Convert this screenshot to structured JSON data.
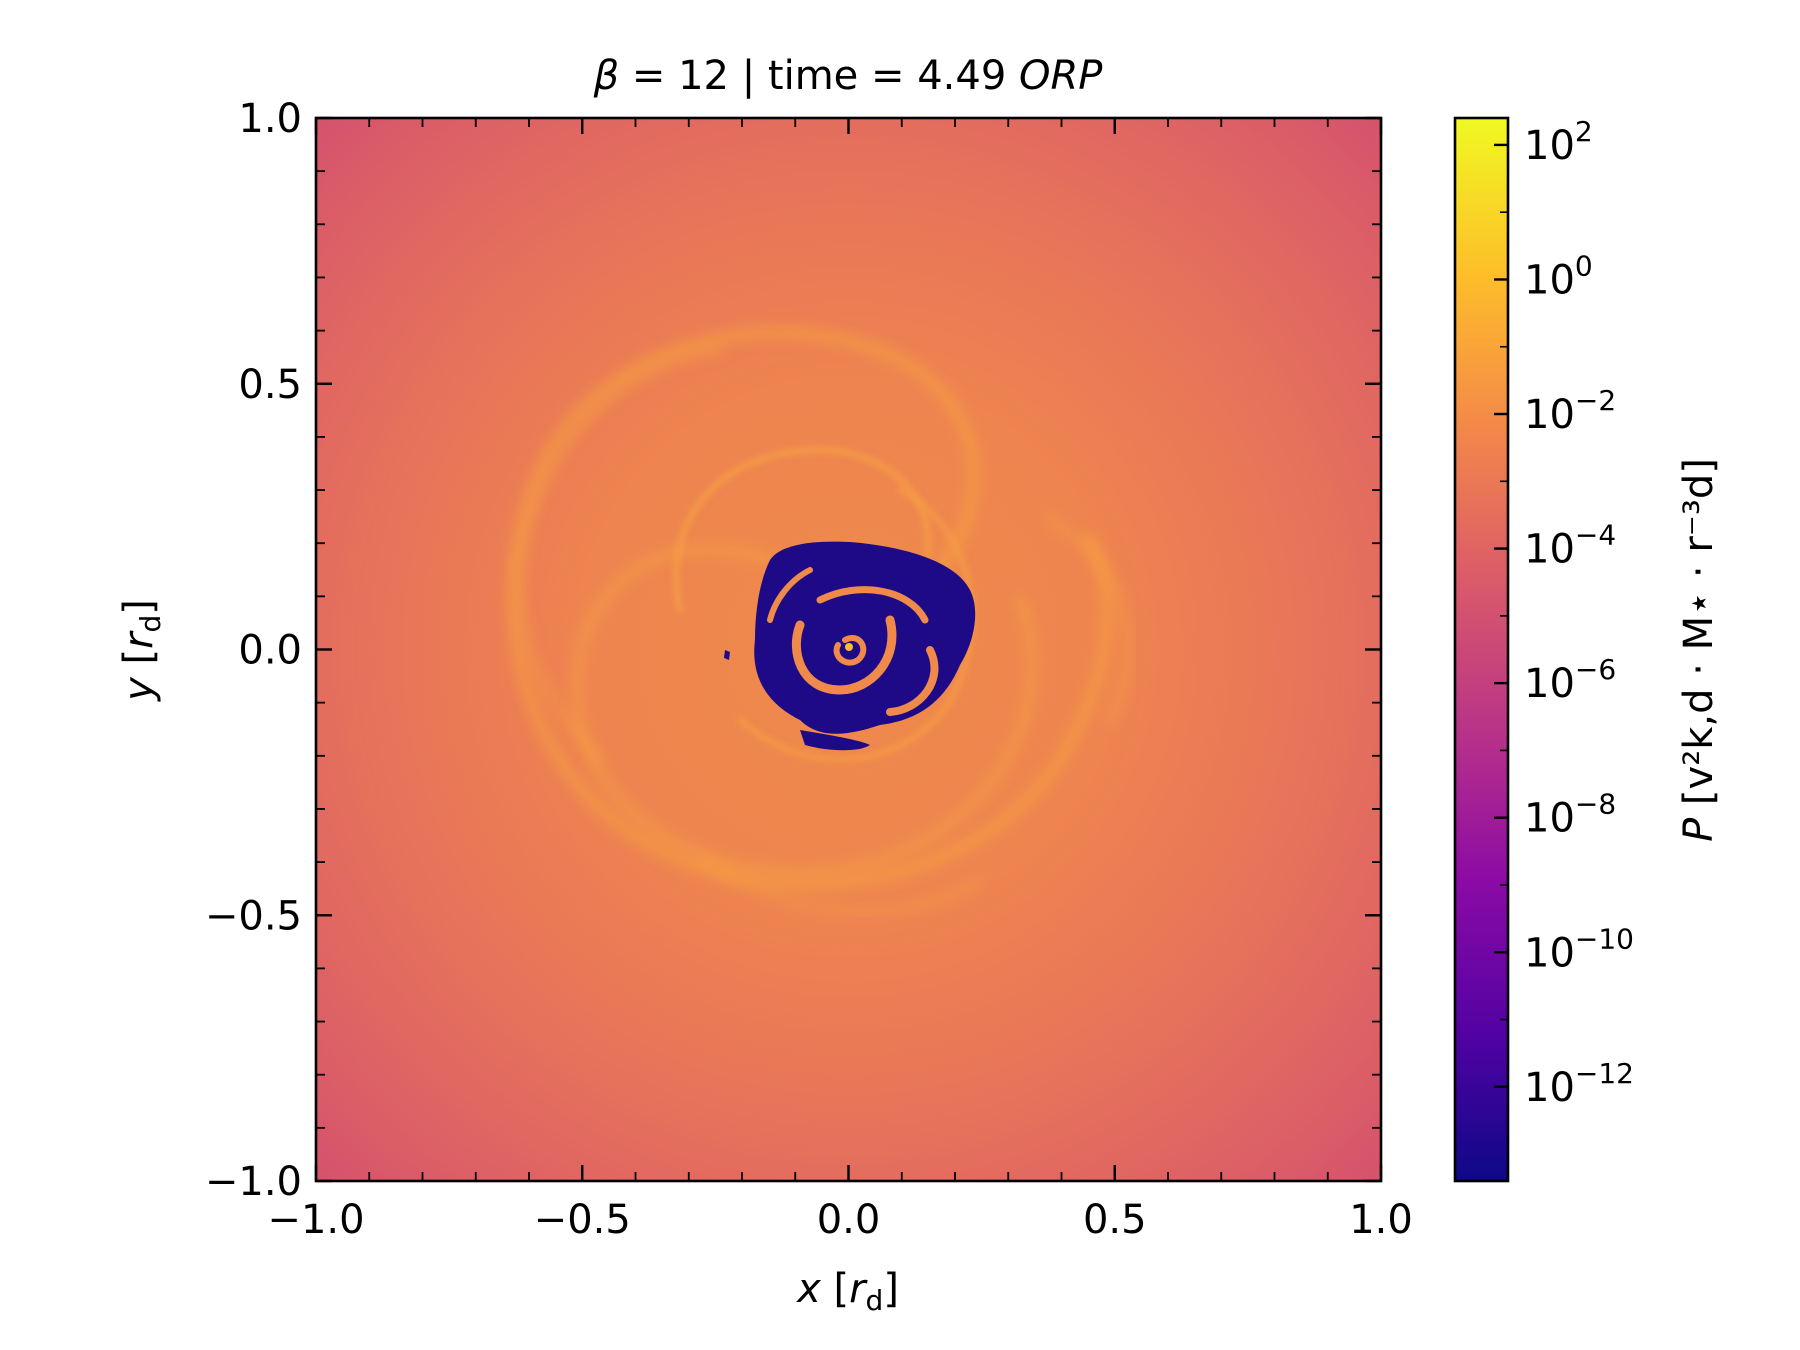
{
  "chart_data": {
    "type": "heatmap",
    "title": {
      "beta_symbol": "β",
      "beta_rest": " = 12 | time = 4.49 ",
      "time_unit": "ORP"
    },
    "xlabel": {
      "var": "x",
      "unit": "r",
      "unit_sub": "d"
    },
    "ylabel": {
      "var": "y",
      "unit": "r",
      "unit_sub": "d"
    },
    "xlim": [
      -1.0,
      1.0
    ],
    "ylim": [
      -1.0,
      1.0
    ],
    "xticks": [
      "−1.0",
      "−0.5",
      "0.0",
      "0.5",
      "1.0"
    ],
    "yticks": [
      "−1.0",
      "−0.5",
      "0.0",
      "0.5",
      "1.0"
    ],
    "xtick_values": [
      -1.0,
      -0.5,
      0.0,
      0.5,
      1.0
    ],
    "ytick_values": [
      -1.0,
      -0.5,
      0.0,
      0.5,
      1.0
    ],
    "colorbar": {
      "scale": "log",
      "colormap": "plasma",
      "range_log10": [
        -13.4,
        2.4
      ],
      "tick_exponents": [
        2,
        0,
        -2,
        -4,
        -6,
        -8,
        -10,
        -12
      ],
      "tick_base": "10",
      "tick_exp_labels": [
        "2",
        "0",
        "−2",
        "−4",
        "−6",
        "−8",
        "−10",
        "−12"
      ],
      "label": {
        "var": "P",
        "text": "[v²k,d · M⋆ · r⁻³d]"
      },
      "colors": [
        "#0d0887",
        "#5302a3",
        "#8b0aa5",
        "#b83289",
        "#db5c68",
        "#f48849",
        "#febd2a",
        "#f0f921"
      ]
    },
    "field_description_colors": {
      "outer": "#d8566f",
      "disk": "#ec7b51",
      "arms": "#f8a040",
      "cavity": "#1e0a86"
    }
  }
}
